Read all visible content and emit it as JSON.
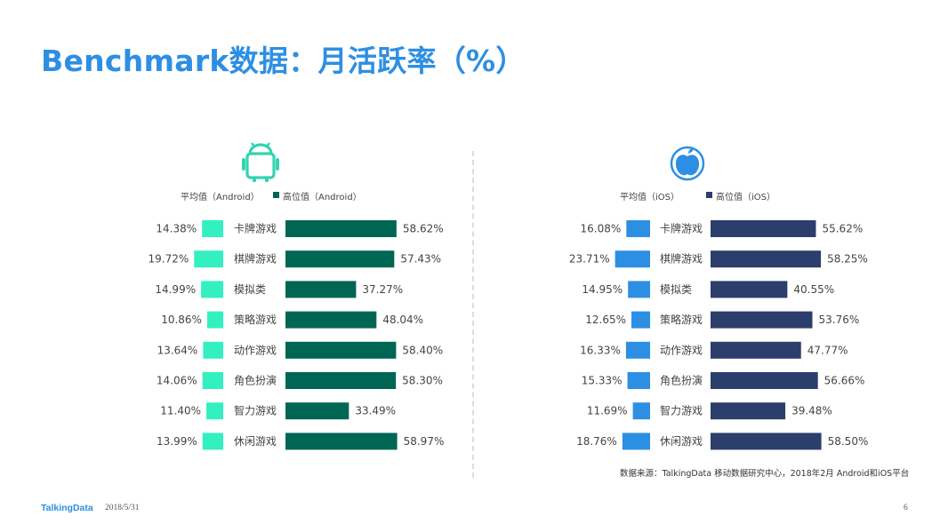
{
  "title": "Benchmark数据：月活跃率（%）",
  "source": "数据来源：TalkingData 移动数据研究中心，2018年2月 Android和iOS平台",
  "footer": {
    "logo": "TalkingData",
    "date": "2018/5/31",
    "page": "6"
  },
  "colors": {
    "title": "#2d8fe3",
    "android_avg": "#33f0c0",
    "android_high": "#006654",
    "ios_avg": "#2d8fe3",
    "ios_high": "#2c3e6b",
    "android_icon": "#33d4b0",
    "ios_icon": "#2d8fe3"
  },
  "chart_data": [
    {
      "type": "bar",
      "platform_icon": "android-icon",
      "categories": [
        "卡牌游戏",
        "棋牌游戏",
        "模拟类",
        "策略游戏",
        "动作游戏",
        "角色扮演",
        "智力游戏",
        "休闲游戏"
      ],
      "series": [
        {
          "name": "平均值（Android）",
          "values": [
            14.38,
            19.72,
            14.99,
            10.86,
            13.64,
            14.06,
            11.4,
            13.99
          ],
          "labels": [
            "14.38%",
            "19.72%",
            "14.99%",
            "10.86%",
            "13.64%",
            "14.06%",
            "11.40%",
            "13.99%"
          ]
        },
        {
          "name": "高位值（Android）",
          "values": [
            58.62,
            57.43,
            37.27,
            48.04,
            58.4,
            58.3,
            33.49,
            58.97
          ],
          "labels": [
            "58.62%",
            "57.43%",
            "37.27%",
            "48.04%",
            "58.40%",
            "58.30%",
            "33.49%",
            "58.97%"
          ]
        }
      ]
    },
    {
      "type": "bar",
      "platform_icon": "apple-icon",
      "categories": [
        "卡牌游戏",
        "棋牌游戏",
        "模拟类",
        "策略游戏",
        "动作游戏",
        "角色扮演",
        "智力游戏",
        "休闲游戏"
      ],
      "series": [
        {
          "name": "平均值（iOS）",
          "values": [
            16.08,
            23.71,
            14.95,
            12.65,
            16.33,
            15.33,
            11.69,
            18.76
          ],
          "labels": [
            "16.08%",
            "23.71%",
            "14.95%",
            "12.65%",
            "16.33%",
            "15.33%",
            "11.69%",
            "18.76%"
          ]
        },
        {
          "name": "高位值（iOS）",
          "values": [
            55.62,
            58.25,
            40.55,
            53.76,
            47.77,
            56.66,
            39.48,
            58.5
          ],
          "labels": [
            "55.62%",
            "58.25%",
            "40.55%",
            "53.76%",
            "47.77%",
            "56.66%",
            "39.48%",
            "58.50%"
          ]
        }
      ]
    }
  ]
}
